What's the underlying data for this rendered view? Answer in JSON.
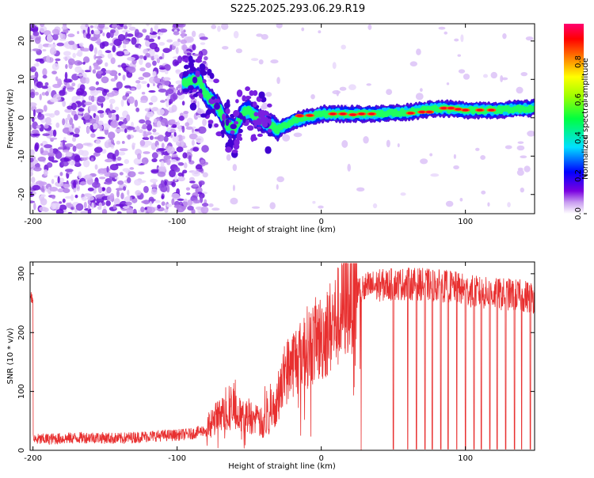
{
  "title": "S225.2025.293.06.29.R19",
  "chart_data": [
    {
      "type": "heatmap",
      "title": "S225.2025.293.06.29.R19",
      "xlabel": "Height of straight line (km)",
      "ylabel": "Frequency (Hz)",
      "xlim": [
        -202,
        148
      ],
      "ylim": [
        -25,
        24.5
      ],
      "x_ticks": [
        -200,
        -100,
        0,
        100
      ],
      "y_ticks": [
        -20,
        -10,
        0,
        10,
        20
      ],
      "x_tick_labels": [
        "-200",
        "-100",
        "0",
        "100"
      ],
      "y_tick_labels": [
        "-20",
        "-10",
        "0",
        "10",
        "20"
      ],
      "colorbar": {
        "label": "Normalized spectral amplitude",
        "range": [
          0,
          1
        ],
        "ticks": [
          0.0,
          0.2,
          0.4,
          0.6,
          0.8
        ],
        "tick_labels": [
          "0.0",
          "0.2",
          "0.4",
          "0.6",
          "0.8"
        ]
      },
      "ridge": {
        "description_x": [
          -95,
          -85,
          -80,
          -72,
          -65,
          -60,
          -55,
          -50,
          -45,
          -40,
          -35,
          -30,
          -20,
          -10,
          0,
          10,
          20,
          40,
          60,
          80,
          100,
          120,
          148
        ],
        "description_y": [
          9,
          10,
          6,
          3,
          -2,
          -3,
          1,
          2,
          0,
          -1,
          -2,
          -3,
          -1,
          0,
          1,
          1,
          1,
          1,
          1.5,
          2.5,
          2,
          2,
          2.5
        ]
      }
    },
    {
      "type": "line",
      "xlabel": "Height of straight line (km)",
      "ylabel": "SNR (10 * v/v)",
      "xlim": [
        -202,
        148
      ],
      "ylim": [
        0,
        320
      ],
      "x_ticks": [
        -200,
        -100,
        0,
        100
      ],
      "y_ticks": [
        0,
        100,
        200,
        300
      ],
      "x_tick_labels": [
        "-200",
        "-100",
        "0",
        "100"
      ],
      "y_tick_labels": [
        "0",
        "100",
        "200",
        "300"
      ],
      "series": [
        {
          "name": "SNR",
          "color": "#e83030",
          "x": [
            -200,
            -180,
            -160,
            -140,
            -120,
            -100,
            -90,
            -80,
            -75,
            -70,
            -65,
            -60,
            -55,
            -50,
            -45,
            -40,
            -35,
            -30,
            -25,
            -20,
            -15,
            -10,
            -5,
            0,
            5,
            10,
            15,
            20,
            25,
            30,
            35,
            40,
            50,
            60,
            70,
            80,
            90,
            100,
            110,
            120,
            130,
            140,
            148
          ],
          "values": [
            18,
            20,
            22,
            20,
            24,
            26,
            28,
            35,
            50,
            60,
            65,
            70,
            55,
            60,
            50,
            45,
            55,
            90,
            130,
            150,
            160,
            175,
            185,
            190,
            205,
            220,
            240,
            265,
            270,
            275,
            278,
            280,
            282,
            283,
            282,
            280,
            278,
            272,
            268,
            265,
            265,
            262,
            260
          ]
        }
      ],
      "dropouts_x": [
        50,
        60,
        66,
        72,
        77,
        83,
        88,
        94,
        100,
        106,
        111,
        117,
        122,
        128,
        134,
        139,
        145
      ]
    }
  ]
}
